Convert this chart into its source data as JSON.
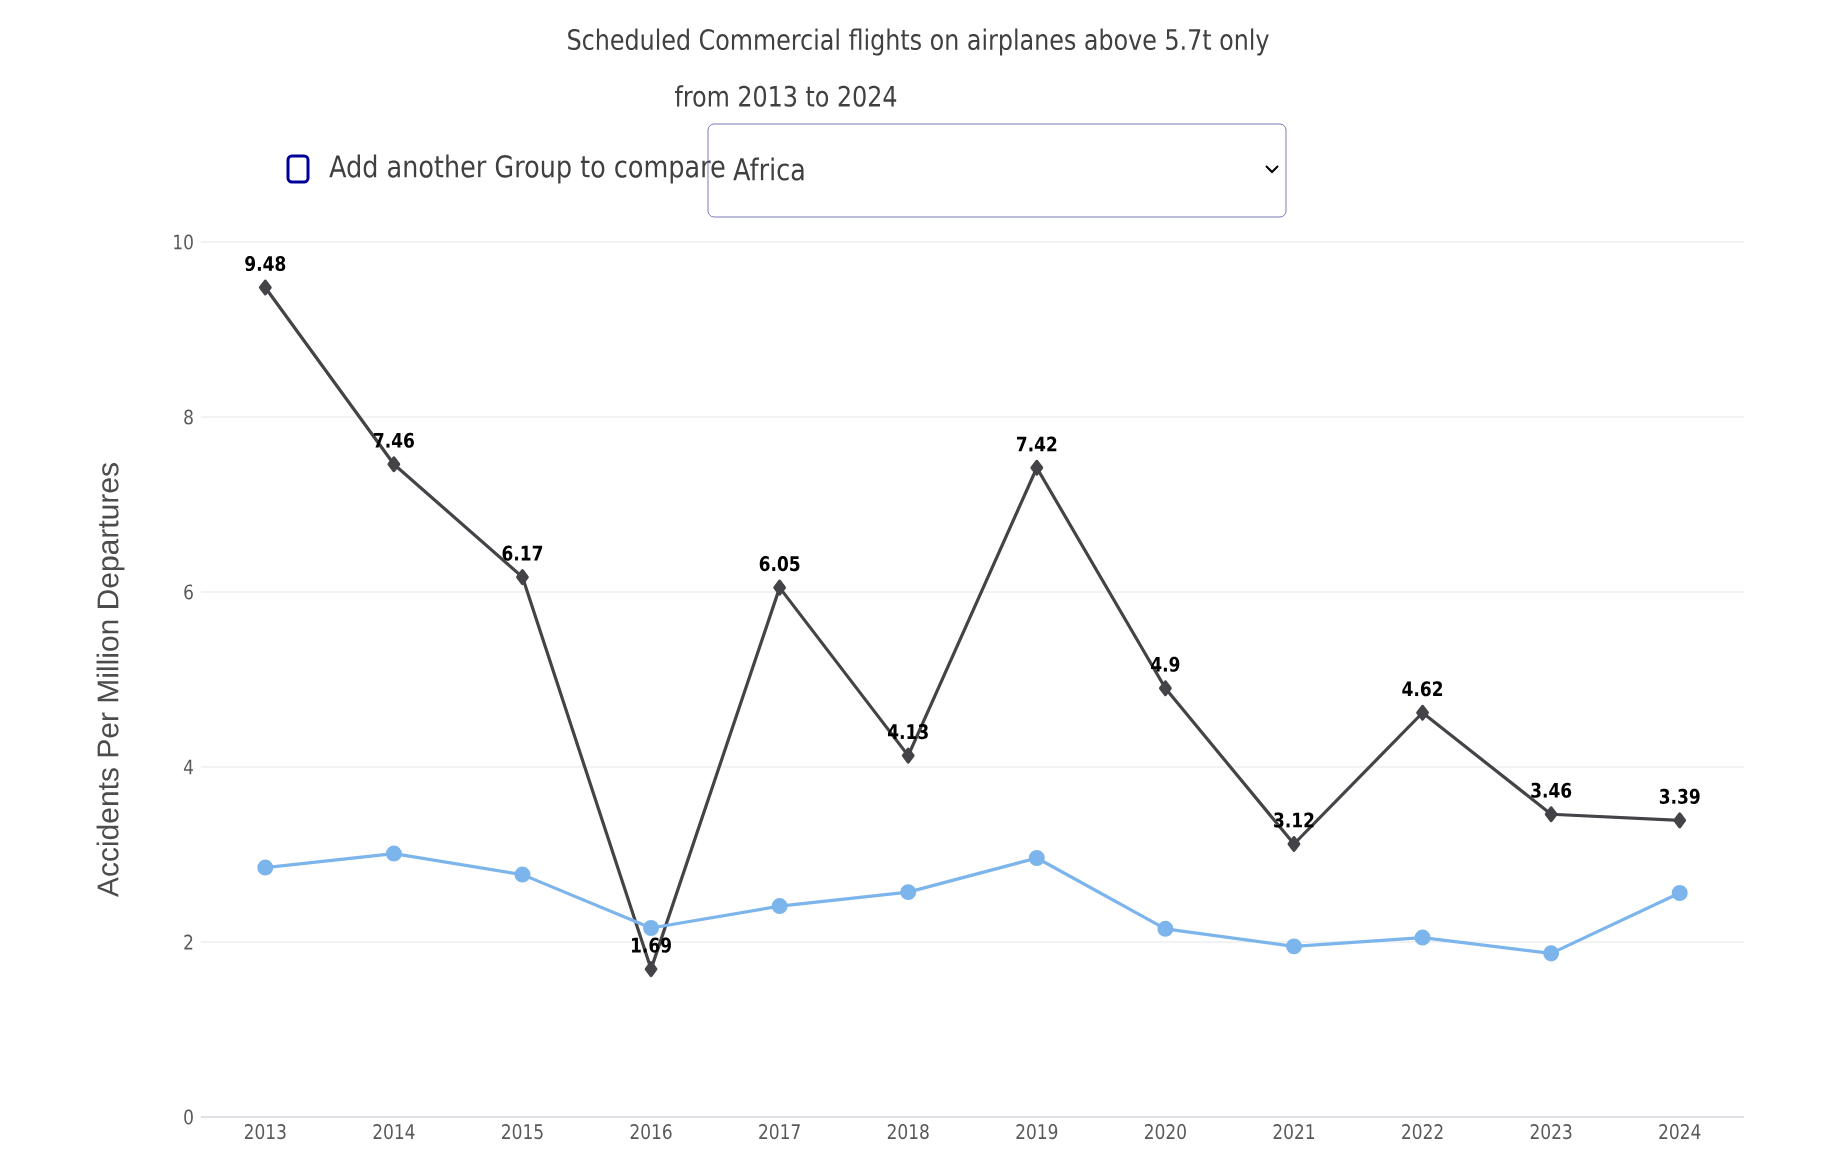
{
  "chart_data": {
    "type": "line",
    "title": "Scheduled Commercial flights on airplanes above 5.7t only",
    "subtitle": "from 2013 to 2024",
    "ylabel": "Accidents Per Million Departures",
    "annotations": [
      "Add another Group to compare",
      "Africa"
    ],
    "categories": [
      "2013",
      "2014",
      "2015",
      "2016",
      "2017",
      "2018",
      "2019",
      "2020",
      "2021",
      "2022",
      "2023",
      "2024"
    ],
    "series": [
      {
        "color": "#434348",
        "marker": "diamond",
        "values": [
          9.48,
          7.46,
          6.17,
          1.69,
          6.05,
          4.13,
          7.42,
          4.9,
          3.12,
          4.62,
          3.46,
          3.39
        ],
        "value_labels": [
          "9.48",
          "7.46",
          "6.17",
          "1.69",
          "6.05",
          "4.13",
          "7.42",
          "4.9",
          "3.12",
          "4.62",
          "3.46",
          "3.39"
        ]
      },
      {
        "color": "#7cb5ec",
        "marker": "circle",
        "values": [
          2.85,
          3.01,
          2.77,
          2.16,
          2.41,
          2.57,
          2.96,
          2.15,
          1.95,
          2.05,
          1.87,
          2.56
        ]
      }
    ],
    "ylim": [
      0,
      10
    ],
    "yticks": [
      0,
      2,
      4,
      6,
      8,
      10
    ],
    "grid": "y"
  }
}
